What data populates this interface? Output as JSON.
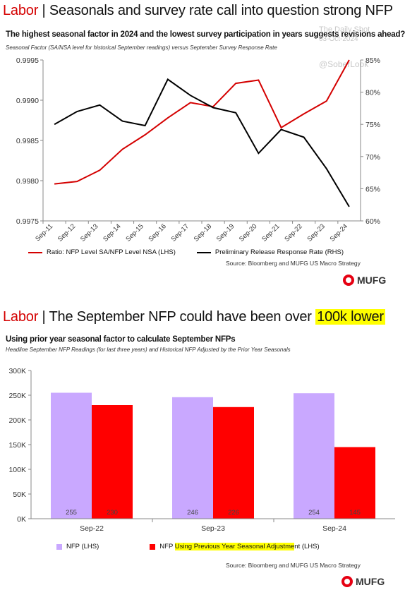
{
  "panel1": {
    "header_label": "Labor",
    "header_sep": "|",
    "header_text": "Seasonals and survey rate call into question strong NFP",
    "subtitle": "The highest seasonal factor in 2024 and the lowest survey participation in years suggests revisions ahead?",
    "subtitle_italic": "Seasonal Factor (SA/NSA level for historical September readings) versus September Survey Response Rate",
    "watermark1": "The Daily Shot",
    "watermark2": "03-Oct-2024",
    "watermark3": "@SoberLook",
    "legend_red": "Ratio: NFP Level SA/NFP Level NSA (LHS)",
    "legend_black": "Preliminary Release Response Rate (RHS)",
    "source": "Source: Bloomberg and MUFG US Macro Strategy",
    "logo": "MUFG"
  },
  "panel2": {
    "header_label": "Labor",
    "header_sep": "|",
    "header_text": "The September NFP could have been over",
    "header_highlight": "100k lower",
    "subtitle": "Using prior year seasonal factor to calculate September NFPs",
    "subtitle_italic": "Headline September NFP Readings (for last three years) and Historical NFP Adjusted by the Prior Year Seasonals",
    "legend_purple": "NFP (LHS)",
    "legend_red_prefix": "NFP",
    "legend_red_highlight": "Using Previous Year Seasonal Adjustme",
    "legend_red_suffix": "nt (LHS)",
    "source": "Source: Bloomberg and MUFG US Macro Strategy",
    "logo": "MUFG"
  },
  "colors": {
    "red": "#d40000",
    "bar_red": "#ff0000",
    "bar_purple": "#c9a8ff",
    "highlight": "#ffff00"
  },
  "chart_data": [
    {
      "type": "line",
      "title": "The highest seasonal factor in 2024 and the lowest survey participation in years suggests revisions ahead?",
      "categories": [
        "Sep-11",
        "Sep-12",
        "Sep-13",
        "Sep-14",
        "Sep-15",
        "Sep-16",
        "Sep-17",
        "Sep-18",
        "Sep-19",
        "Sep-20",
        "Sep-21",
        "Sep-22",
        "Sep-23",
        "Sep-24"
      ],
      "series": [
        {
          "name": "Ratio: NFP Level SA/NFP Level NSA (LHS)",
          "axis": "left",
          "color": "#d40000",
          "values": [
            0.99796,
            0.99799,
            0.99813,
            0.99839,
            0.99857,
            0.99878,
            0.99897,
            0.99892,
            0.99921,
            0.99925,
            0.99866,
            0.99883,
            0.99899,
            0.9995
          ]
        },
        {
          "name": "Preliminary Release Response Rate (RHS)",
          "axis": "right",
          "color": "#000000",
          "values": [
            75.0,
            77.0,
            78.0,
            75.5,
            74.8,
            82.0,
            79.5,
            77.6,
            76.8,
            70.5,
            74.2,
            73.0,
            68.1,
            62.2
          ]
        }
      ],
      "ylim_left": [
        0.9975,
        0.9995
      ],
      "yticks_left": [
        "0.9975",
        "0.9980",
        "0.9985",
        "0.9990",
        "0.9995"
      ],
      "ylim_right": [
        60,
        85
      ],
      "yticks_right": [
        "60%",
        "65%",
        "70%",
        "75%",
        "80%",
        "85%"
      ],
      "legend": "bottom",
      "grid": false
    },
    {
      "type": "bar",
      "title": "Using prior year seasonal factor to calculate September NFPs",
      "categories": [
        "Sep-22",
        "Sep-23",
        "Sep-24"
      ],
      "series": [
        {
          "name": "NFP (LHS)",
          "color": "#c9a8ff",
          "values": [
            255,
            246,
            254
          ]
        },
        {
          "name": "NFP Using Previous Year Seasonal Adjustment (LHS)",
          "color": "#ff0000",
          "values": [
            230,
            226,
            145
          ]
        }
      ],
      "ylim": [
        0,
        300
      ],
      "yticks": [
        "0K",
        "50K",
        "100K",
        "150K",
        "200K",
        "250K",
        "300K"
      ],
      "legend": "bottom",
      "grid": false
    }
  ]
}
